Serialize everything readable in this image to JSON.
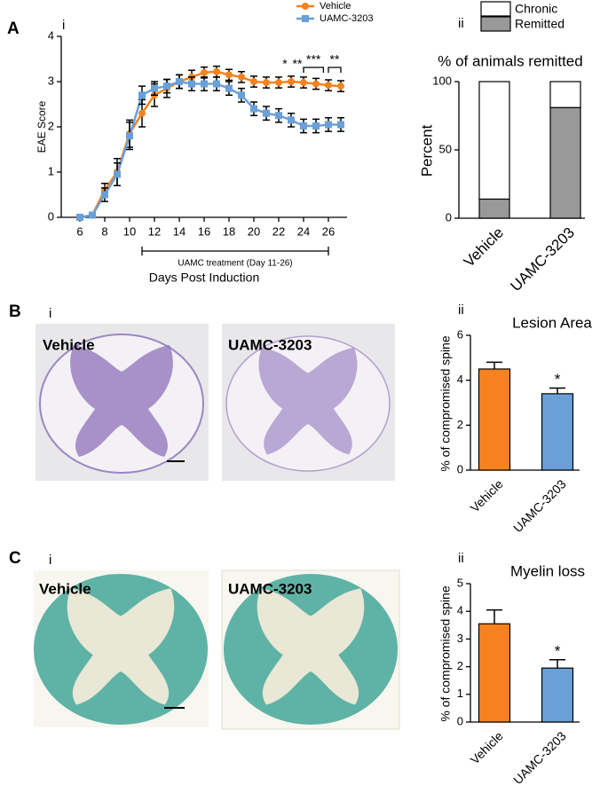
{
  "chart_data": [
    {
      "type": "line",
      "panel": "A",
      "subpanel": "i",
      "xlabel": "Days Post Induction",
      "ylabel": "EAE Score",
      "x": [
        6,
        7,
        8,
        9,
        10,
        11,
        12,
        13,
        14,
        15,
        16,
        17,
        18,
        19,
        20,
        21,
        22,
        23,
        24,
        25,
        26,
        27
      ],
      "series": [
        {
          "name": "Vehicle",
          "color": "#f5821f",
          "values": [
            0,
            0.05,
            0.6,
            1.0,
            1.85,
            2.3,
            2.7,
            2.85,
            3.0,
            3.1,
            3.2,
            3.22,
            3.15,
            3.1,
            3.0,
            2.98,
            2.98,
            3.0,
            2.98,
            2.95,
            2.92,
            2.9
          ],
          "errors": [
            0,
            0.05,
            0.15,
            0.3,
            0.3,
            0.3,
            0.25,
            0.2,
            0.15,
            0.15,
            0.12,
            0.12,
            0.12,
            0.12,
            0.12,
            0.12,
            0.12,
            0.12,
            0.12,
            0.12,
            0.12,
            0.12
          ]
        },
        {
          "name": "UAMC-3203",
          "color": "#6a9fd8",
          "values": [
            0,
            0.05,
            0.5,
            0.95,
            1.8,
            2.7,
            2.85,
            2.9,
            3.0,
            2.95,
            2.95,
            2.95,
            2.85,
            2.7,
            2.4,
            2.3,
            2.25,
            2.15,
            2.02,
            2.02,
            2.05,
            2.05
          ],
          "errors": [
            0,
            0.05,
            0.15,
            0.25,
            0.3,
            0.2,
            0.15,
            0.15,
            0.15,
            0.15,
            0.15,
            0.15,
            0.15,
            0.15,
            0.15,
            0.15,
            0.15,
            0.15,
            0.15,
            0.15,
            0.15,
            0.15
          ]
        }
      ],
      "xlim": [
        4.5,
        27.5
      ],
      "ylim": [
        0,
        4
      ],
      "xticks": [
        6,
        8,
        10,
        12,
        14,
        16,
        18,
        20,
        22,
        24,
        26
      ],
      "yticks": [
        0,
        1,
        2,
        3,
        4
      ],
      "treatment": {
        "label": "UAMC treatment (Day 11-26)",
        "x": [
          11,
          26
        ]
      },
      "annotations": [
        {
          "text": "*",
          "x": 22.5
        },
        {
          "text": "**",
          "x": 23.5
        },
        {
          "text": "***",
          "x": [
            24,
            25.6
          ]
        },
        {
          "text": "**",
          "x": [
            26,
            27
          ]
        }
      ]
    },
    {
      "type": "stacked_bar",
      "subpanel": "ii",
      "title": "% of animals remitted",
      "ylabel": "Percent",
      "categories": [
        "Vehicle",
        "UAMC-3203"
      ],
      "series": [
        {
          "name": "Remitted",
          "color": "#999999",
          "values": [
            14,
            81
          ]
        },
        {
          "name": "Chronic",
          "color": "#ffffff",
          "values": [
            86,
            19
          ]
        }
      ],
      "ylim": [
        0,
        100
      ],
      "yticks": [
        0,
        50,
        100
      ]
    },
    {
      "type": "bar",
      "subpanel": "ii",
      "title": "Lesion Area",
      "ylabel": "% of compromised spine",
      "categories": [
        "Vehicle",
        "UAMC-3203"
      ],
      "values": [
        4.5,
        3.4
      ],
      "errors": [
        0.3,
        0.25
      ],
      "colors": [
        "#f5821f",
        "#6a9fd8"
      ],
      "ylim": [
        0,
        6
      ],
      "yticks": [
        0,
        2,
        4,
        6
      ],
      "annotations": [
        {
          "text": "*",
          "category": 1
        }
      ]
    },
    {
      "type": "bar",
      "subpanel": "ii",
      "title": "Myelin loss",
      "ylabel": "% of compromised spine",
      "categories": [
        "Vehicle",
        "UAMC-3203"
      ],
      "values": [
        3.55,
        1.95
      ],
      "errors": [
        0.5,
        0.3
      ],
      "colors": [
        "#f5821f",
        "#6a9fd8"
      ],
      "ylim": [
        0,
        5
      ],
      "yticks": [
        0,
        1,
        2,
        3,
        4,
        5
      ],
      "annotations": [
        {
          "text": "*",
          "category": 1
        }
      ]
    }
  ],
  "images": {
    "B": {
      "panel": "B",
      "subpanel": "i",
      "labels": [
        "Vehicle",
        "UAMC-3203"
      ]
    },
    "C": {
      "panel": "C",
      "subpanel": "i",
      "labels": [
        "Vehicle",
        "UAMC-3203"
      ]
    }
  }
}
